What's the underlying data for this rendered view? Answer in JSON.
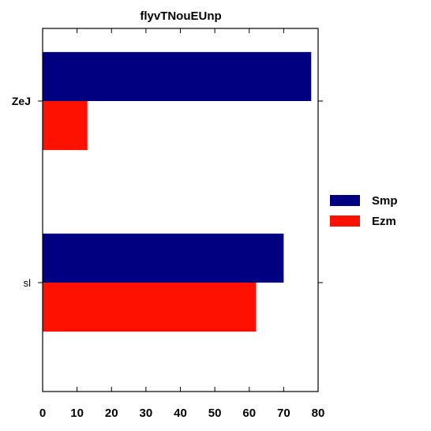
{
  "chart_data": {
    "type": "bar",
    "orientation": "horizontal",
    "title": "flyvTNouEUnp",
    "categories": [
      "ZeJ",
      "sl"
    ],
    "category_label_bold": [
      true,
      false
    ],
    "series": [
      {
        "name": "Smp",
        "color": "#000080",
        "values": [
          78,
          70
        ]
      },
      {
        "name": "Ezm",
        "color": "#ff1100",
        "values": [
          13,
          62
        ]
      }
    ],
    "xlim": [
      0,
      80
    ],
    "xticks": [
      "0",
      "10",
      "20",
      "30",
      "40",
      "50",
      "60",
      "70",
      "80"
    ],
    "xlabel": "",
    "ylabel": "",
    "grid": false,
    "legend_position": "right"
  }
}
